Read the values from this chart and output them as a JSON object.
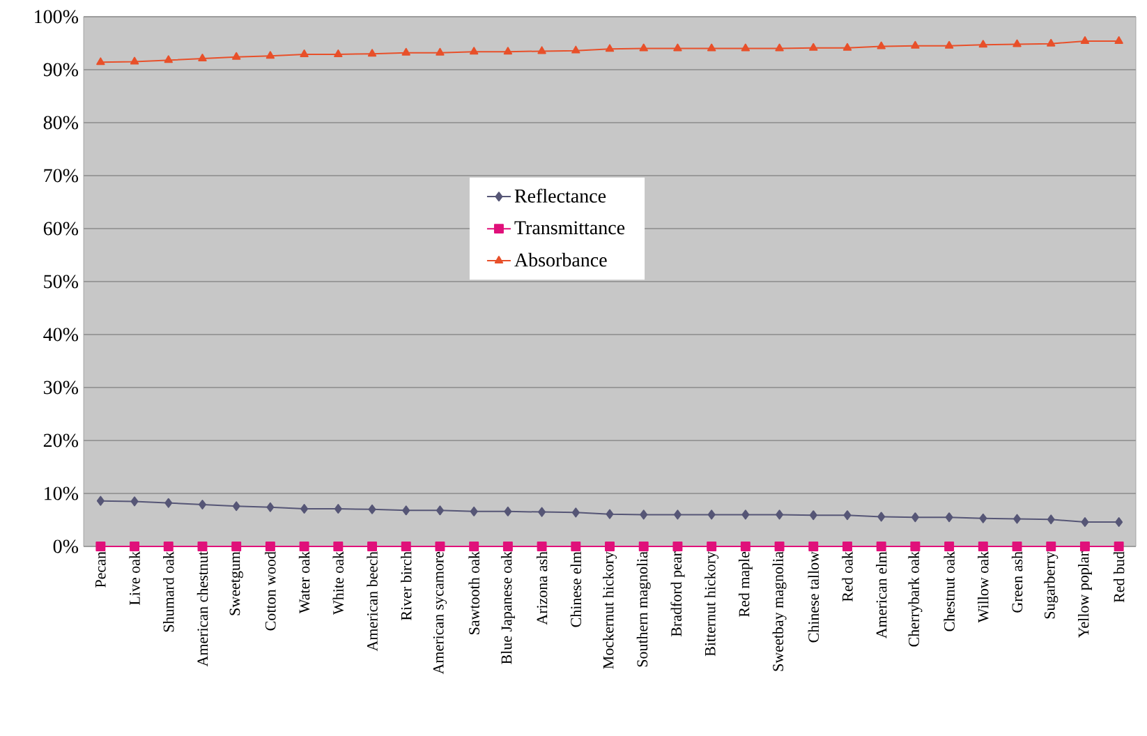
{
  "chart_data": {
    "type": "line",
    "categories": [
      "Pecan",
      "Live oak",
      "Shumard oak",
      "American chestnut",
      "Sweetgum",
      "Cotton wood",
      "Water oak",
      "White oak",
      "American beech",
      "River birch",
      "American sycamore",
      "Sawtooth oak",
      "Blue Japanese oak",
      "Arizona ash",
      "Chinese elm",
      "Mockernut hickory",
      "Southern magnolia",
      "Bradford pear",
      "Bitternut hickory",
      "Red maple",
      "Sweetbay magnolia",
      "Chinese tallow",
      "Red oak",
      "American elm",
      "Cherrybark oak",
      "Chestnut oak",
      "Willow oak",
      "Green ash",
      "Sugarberry",
      "Yellow poplar",
      "Red bud"
    ],
    "series": [
      {
        "name": "Reflectance",
        "color": "#565676",
        "marker": "diamond",
        "values": [
          8.6,
          8.5,
          8.2,
          7.9,
          7.6,
          7.4,
          7.1,
          7.1,
          7.0,
          6.8,
          6.8,
          6.6,
          6.6,
          6.5,
          6.4,
          6.1,
          6.0,
          6.0,
          6.0,
          6.0,
          6.0,
          5.9,
          5.9,
          5.6,
          5.5,
          5.5,
          5.3,
          5.2,
          5.1,
          4.6,
          4.6
        ]
      },
      {
        "name": "Transmittance",
        "color": "#e0107a",
        "marker": "square",
        "values": [
          0,
          0,
          0,
          0,
          0,
          0,
          0,
          0,
          0,
          0,
          0,
          0,
          0,
          0,
          0,
          0,
          0,
          0,
          0,
          0,
          0,
          0,
          0,
          0,
          0,
          0,
          0,
          0,
          0,
          0,
          0
        ]
      },
      {
        "name": "Absorbance",
        "color": "#e8502a",
        "marker": "triangle",
        "values": [
          91.4,
          91.5,
          91.8,
          92.1,
          92.4,
          92.6,
          92.9,
          92.9,
          93.0,
          93.2,
          93.2,
          93.4,
          93.4,
          93.5,
          93.6,
          93.9,
          94.0,
          94.0,
          94.0,
          94.0,
          94.0,
          94.1,
          94.1,
          94.4,
          94.5,
          94.5,
          94.7,
          94.8,
          94.9,
          95.4,
          95.4
        ]
      }
    ],
    "ylim": [
      0,
      100
    ],
    "yticks": [
      {
        "value": 0,
        "label": "0%"
      },
      {
        "value": 10,
        "label": "10%"
      },
      {
        "value": 20,
        "label": "20%"
      },
      {
        "value": 30,
        "label": "30%"
      },
      {
        "value": 40,
        "label": "40%"
      },
      {
        "value": 50,
        "label": "50%"
      },
      {
        "value": 60,
        "label": "60%"
      },
      {
        "value": 70,
        "label": "70%"
      },
      {
        "value": 80,
        "label": "80%"
      },
      {
        "value": 90,
        "label": "90%"
      },
      {
        "value": 100,
        "label": "100%"
      }
    ],
    "grid": "y",
    "legend": "center",
    "line_style": "solid"
  }
}
